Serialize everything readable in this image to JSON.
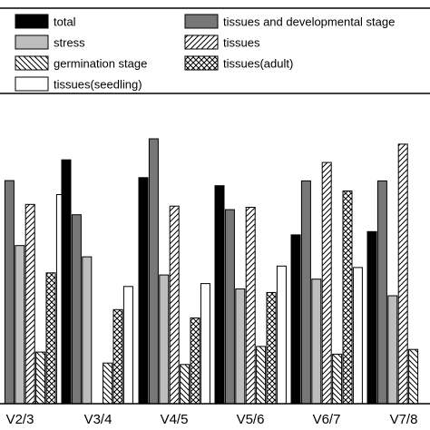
{
  "chart_data": {
    "type": "bar",
    "categories": [
      "V2/3",
      "V3/4",
      "V4/5",
      "V5/6",
      "V6/7",
      "V7/8"
    ],
    "series": [
      {
        "name": "total",
        "values": [
          null,
          0.822,
          0.762,
          0.735,
          0.569,
          0.58
        ],
        "fill": "#000000",
        "pattern": "solid"
      },
      {
        "name": "tissues and developmental stage",
        "values": [
          0.752,
          0.637,
          0.893,
          0.654,
          0.751,
          0.751
        ],
        "fill": "#777777",
        "pattern": "solid"
      },
      {
        "name": "stress",
        "values": [
          0.533,
          0.495,
          0.434,
          0.387,
          0.42,
          0.364
        ],
        "fill": "#bdbdbd",
        "pattern": "solid"
      },
      {
        "name": "tissues",
        "values": [
          0.672,
          null,
          0.666,
          0.662,
          0.813,
          0.875
        ],
        "fill": "#ffffff",
        "pattern": "diagonal"
      },
      {
        "name": "germination stage",
        "values": [
          0.174,
          0.137,
          0.132,
          0.193,
          0.167,
          0.183
        ],
        "fill": "#ffffff",
        "pattern": "backdiagonal"
      },
      {
        "name": "tissues(adult)",
        "values": [
          0.441,
          0.317,
          0.289,
          0.375,
          0.717,
          null
        ],
        "fill": "#ffffff",
        "pattern": "crosshatch"
      },
      {
        "name": "tissues(seedling)",
        "values": [
          0.705,
          0.395,
          0.405,
          0.464,
          0.459,
          null
        ],
        "fill": "#ffffff",
        "pattern": "solid"
      }
    ],
    "ylim": [
      0,
      1
    ],
    "xlabel": "",
    "ylabel": "",
    "grid": false,
    "legend": "top"
  }
}
